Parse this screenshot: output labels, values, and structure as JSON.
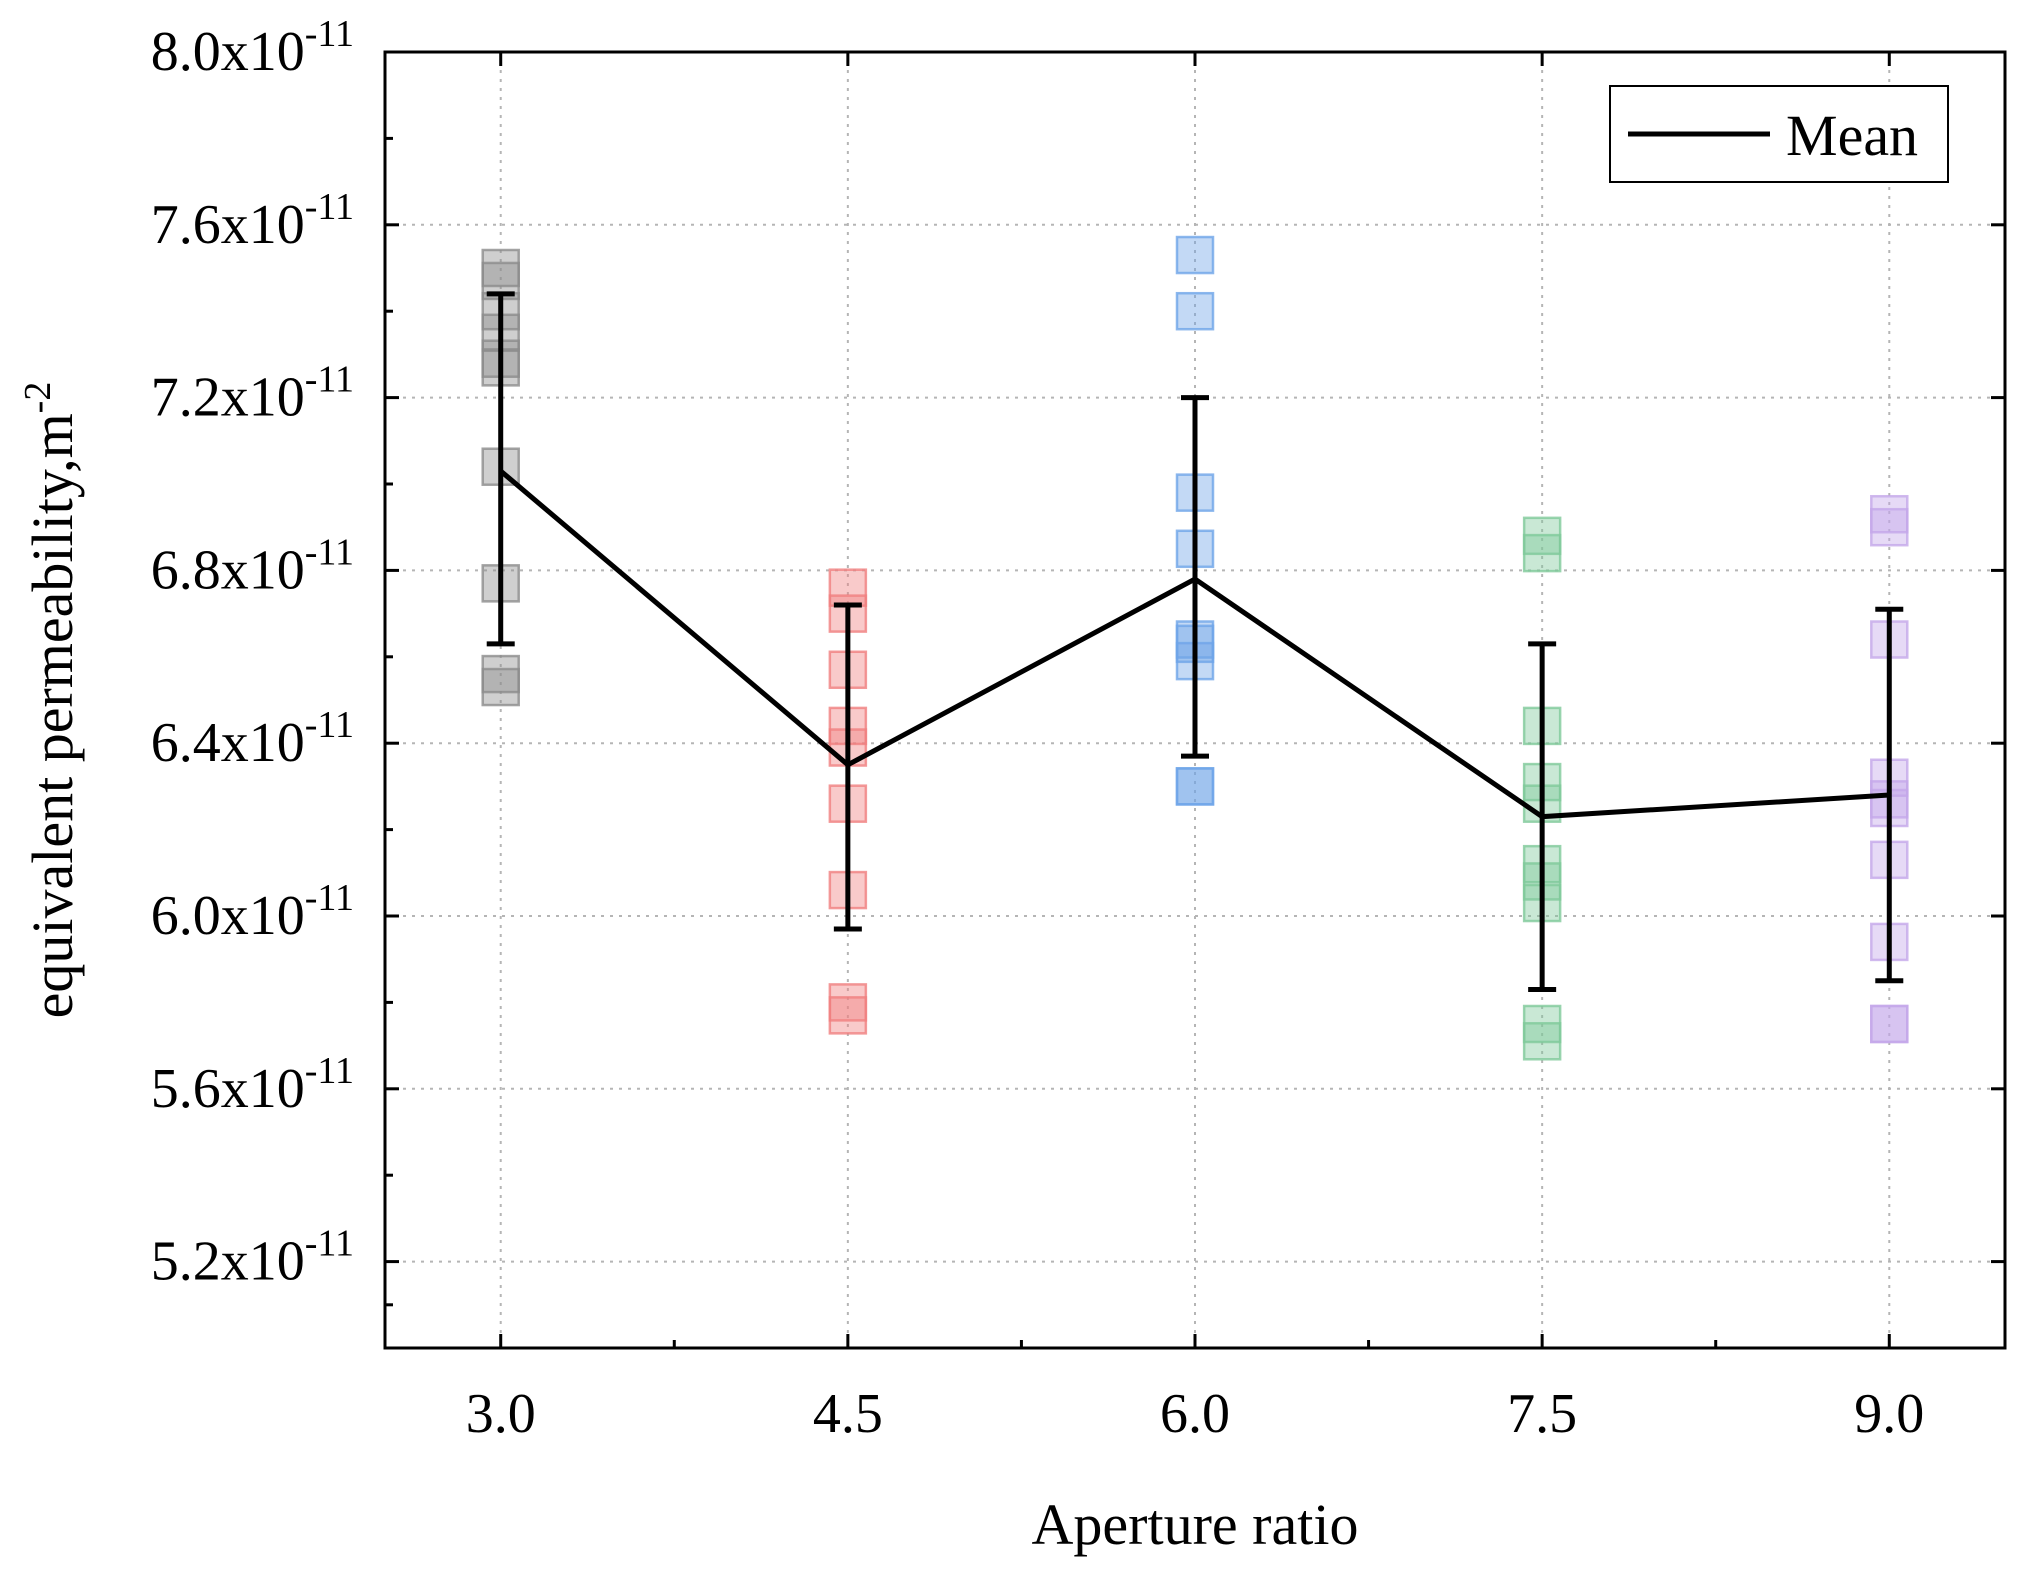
{
  "chart_data": {
    "type": "scatter",
    "title": "",
    "xlabel": "Aperture ratio",
    "ylabel": "equivalent permeability,m",
    "ylabel_superscript": "-2",
    "ylim": [
      5e-11,
      8e-11
    ],
    "xlim": [
      2.5,
      9.5
    ],
    "y_ticks": [
      5.2e-11,
      5.6e-11,
      6e-11,
      6.4e-11,
      6.8e-11,
      7.2e-11,
      7.6e-11,
      8e-11
    ],
    "y_tick_labels": [
      {
        "mantissa": "5.2x10",
        "exp": "-11"
      },
      {
        "mantissa": "5.6x10",
        "exp": "-11"
      },
      {
        "mantissa": "6.0x10",
        "exp": "-11"
      },
      {
        "mantissa": "6.4x10",
        "exp": "-11"
      },
      {
        "mantissa": "6.8x10",
        "exp": "-11"
      },
      {
        "mantissa": "7.2x10",
        "exp": "-11"
      },
      {
        "mantissa": "7.6x10",
        "exp": "-11"
      },
      {
        "mantissa": "8.0x10",
        "exp": "-11"
      }
    ],
    "x_ticks": [
      3.0,
      4.5,
      6.0,
      7.5,
      9.0
    ],
    "x_tick_labels": [
      "3.0",
      "4.5",
      "6.0",
      "7.5",
      "9.0"
    ],
    "x_minor_ticks": [
      3.75,
      5.25,
      6.75,
      8.25
    ],
    "grid": true,
    "legend": {
      "position": "top-right",
      "entries": [
        "Mean"
      ]
    },
    "groups": [
      {
        "x": 3.0,
        "color": "#8c8c8c",
        "values": [
          7.5e-11,
          7.47e-11,
          7.4e-11,
          7.35e-11,
          7.29e-11,
          7.27e-11,
          7.04e-11,
          6.77e-11,
          6.56e-11,
          6.53e-11
        ]
      },
      {
        "x": 4.5,
        "color": "#f08080",
        "values": [
          6.76e-11,
          6.7e-11,
          6.57e-11,
          6.44e-11,
          6.39e-11,
          6.26e-11,
          6.06e-11,
          5.8e-11,
          5.77e-11
        ]
      },
      {
        "x": 6.0,
        "color": "#6fa5e8",
        "values": [
          7.53e-11,
          7.4e-11,
          6.98e-11,
          6.85e-11,
          6.64e-11,
          6.63e-11,
          6.59e-11,
          6.3e-11,
          6.3e-11
        ]
      },
      {
        "x": 7.5,
        "color": "#7fc99a",
        "values": [
          6.88e-11,
          6.84e-11,
          6.44e-11,
          6.31e-11,
          6.26e-11,
          6.12e-11,
          6.08e-11,
          6.03e-11,
          5.75e-11,
          5.71e-11
        ]
      },
      {
        "x": 9.0,
        "color": "#c4a8ea",
        "values": [
          6.93e-11,
          6.9e-11,
          6.64e-11,
          6.32e-11,
          6.27e-11,
          6.25e-11,
          6.13e-11,
          5.94e-11,
          5.75e-11,
          5.75e-11
        ]
      }
    ],
    "mean": {
      "name": "Mean",
      "x": [
        3.0,
        4.5,
        6.0,
        7.5,
        9.0
      ],
      "y": [
        7.03e-11,
        6.35e-11,
        6.78e-11,
        6.23e-11,
        6.28e-11
      ],
      "err_low": [
        6.63e-11,
        5.97e-11,
        6.37e-11,
        5.83e-11,
        5.85e-11
      ],
      "err_high": [
        7.44e-11,
        6.72e-11,
        7.2e-11,
        6.63e-11,
        6.71e-11
      ]
    }
  }
}
